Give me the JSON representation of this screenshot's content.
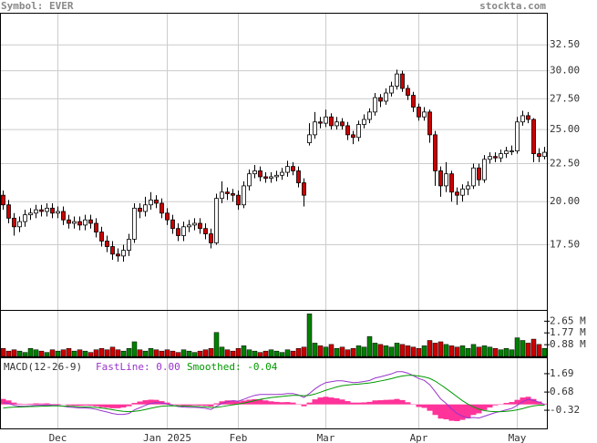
{
  "header": {
    "symbol": "Symbol: EVER",
    "site": "stockta.com"
  },
  "chart_data": [
    {
      "type": "candlestick",
      "categories": [
        null,
        null,
        null,
        null,
        null,
        null,
        null,
        null,
        null,
        null,
        "Dec",
        null,
        null,
        null,
        null,
        null,
        null,
        null,
        null,
        null,
        null,
        null,
        null,
        null,
        null,
        null,
        null,
        null,
        null,
        null,
        "Jan 2025",
        null,
        null,
        null,
        null,
        null,
        null,
        null,
        null,
        null,
        null,
        null,
        null,
        "Feb",
        null,
        null,
        null,
        null,
        null,
        null,
        null,
        null,
        null,
        null,
        null,
        null,
        null,
        null,
        null,
        "Mar",
        null,
        null,
        null,
        null,
        null,
        null,
        null,
        null,
        null,
        null,
        null,
        null,
        null,
        null,
        null,
        null,
        "Apr",
        null,
        null,
        null,
        null,
        null,
        null,
        null,
        null,
        null,
        null,
        null,
        null,
        null,
        null,
        null,
        null,
        null,
        "May",
        null,
        null,
        null,
        null,
        null
      ],
      "open": [
        20.4,
        19.8,
        19.0,
        18.5,
        18.8,
        19.2,
        19.3,
        19.5,
        19.4,
        19.6,
        19.3,
        19.4,
        18.9,
        18.7,
        18.8,
        18.6,
        18.9,
        18.7,
        18.2,
        17.7,
        17.4,
        17.0,
        16.9,
        17.2,
        17.8,
        19.6,
        19.4,
        19.8,
        20.1,
        19.9,
        19.3,
        18.9,
        18.4,
        18.0,
        18.5,
        18.6,
        18.7,
        18.4,
        18.1,
        17.6,
        20.2,
        20.6,
        20.5,
        20.4,
        19.8,
        21.0,
        21.8,
        22.0,
        21.6,
        21.5,
        21.6,
        21.7,
        21.9,
        22.3,
        22.0,
        21.2,
        24.0,
        24.6,
        25.6,
        25.5,
        26.0,
        25.3,
        25.6,
        25.3,
        24.6,
        24.4,
        25.4,
        25.8,
        26.4,
        27.6,
        27.3,
        28.0,
        28.6,
        29.7,
        28.4,
        27.8,
        26.8,
        26.0,
        26.4,
        24.6,
        22.0,
        21.0,
        21.8,
        20.6,
        20.4,
        20.8,
        21.0,
        22.2,
        21.4,
        22.8,
        23.0,
        22.9,
        23.2,
        23.4,
        23.4,
        25.6,
        26.1,
        25.8,
        23.2,
        23.0
      ],
      "high": [
        20.7,
        20.1,
        19.3,
        19.1,
        19.5,
        19.6,
        19.8,
        19.8,
        19.9,
        19.9,
        19.7,
        19.7,
        19.2,
        19.1,
        19.1,
        19.2,
        19.2,
        19.0,
        18.5,
        18.0,
        17.7,
        17.3,
        17.5,
        18.1,
        19.9,
        19.9,
        20.3,
        20.6,
        20.4,
        20.2,
        19.6,
        19.2,
        18.7,
        18.8,
        18.9,
        19.0,
        19.0,
        18.7,
        18.4,
        20.5,
        21.3,
        20.9,
        20.8,
        20.7,
        21.3,
        22.1,
        22.4,
        22.3,
        21.9,
        21.9,
        22.0,
        22.2,
        22.7,
        22.6,
        22.3,
        21.5,
        25.5,
        26.4,
        26.0,
        26.6,
        26.3,
        26.0,
        25.9,
        25.6,
        24.9,
        25.7,
        26.2,
        26.7,
        28.0,
        27.9,
        28.4,
        29.0,
        30.1,
        30.0,
        28.7,
        28.1,
        27.1,
        26.8,
        26.6,
        24.9,
        22.3,
        22.6,
        22.0,
        20.9,
        21.1,
        21.3,
        22.5,
        22.5,
        23.1,
        23.3,
        23.3,
        23.5,
        23.7,
        23.8,
        26.0,
        26.5,
        26.4,
        25.9,
        23.6,
        23.7
      ],
      "low": [
        19.5,
        18.7,
        18.0,
        18.2,
        18.5,
        18.9,
        19.0,
        19.1,
        19.1,
        19.0,
        19.0,
        18.6,
        18.4,
        18.4,
        18.3,
        18.3,
        18.4,
        17.9,
        17.4,
        17.1,
        16.7,
        16.6,
        16.6,
        16.9,
        17.6,
        19.0,
        19.1,
        19.5,
        19.6,
        19.0,
        18.6,
        18.1,
        17.7,
        17.7,
        18.2,
        18.3,
        18.1,
        17.8,
        17.3,
        17.5,
        19.9,
        20.1,
        20.0,
        19.5,
        19.6,
        20.7,
        21.5,
        21.3,
        21.2,
        21.2,
        21.3,
        21.4,
        21.6,
        21.7,
        20.9,
        19.7,
        23.8,
        24.3,
        25.1,
        25.2,
        25.0,
        25.0,
        25.0,
        24.2,
        23.9,
        24.1,
        25.1,
        25.5,
        26.1,
        26.8,
        27.0,
        27.7,
        28.3,
        28.1,
        27.4,
        26.4,
        25.7,
        25.7,
        24.0,
        21.0,
        20.3,
        20.6,
        20.0,
        19.8,
        20.0,
        20.4,
        20.8,
        21.0,
        21.2,
        22.5,
        22.6,
        22.6,
        22.9,
        23.1,
        23.2,
        25.3,
        25.5,
        22.6,
        22.6,
        22.8
      ],
      "close": [
        19.8,
        19.0,
        18.5,
        18.8,
        19.2,
        19.3,
        19.5,
        19.4,
        19.6,
        19.3,
        19.4,
        18.9,
        18.7,
        18.8,
        18.6,
        18.9,
        18.7,
        18.2,
        17.7,
        17.4,
        17.0,
        16.9,
        17.2,
        17.8,
        19.6,
        19.4,
        19.8,
        20.1,
        19.9,
        19.3,
        18.9,
        18.4,
        18.0,
        18.5,
        18.6,
        18.7,
        18.4,
        18.1,
        17.6,
        20.2,
        20.6,
        20.5,
        20.4,
        19.8,
        21.0,
        21.8,
        22.0,
        21.6,
        21.5,
        21.6,
        21.7,
        21.9,
        22.3,
        22.0,
        21.2,
        20.4,
        24.6,
        25.6,
        25.5,
        26.0,
        25.3,
        25.6,
        25.3,
        24.6,
        24.4,
        25.4,
        25.8,
        26.4,
        27.6,
        27.3,
        28.0,
        28.6,
        29.7,
        28.4,
        27.8,
        26.8,
        26.0,
        26.4,
        24.6,
        22.0,
        21.0,
        21.8,
        20.6,
        20.4,
        20.8,
        21.0,
        22.2,
        21.4,
        22.8,
        23.0,
        22.9,
        23.2,
        23.4,
        23.4,
        25.6,
        26.1,
        25.8,
        23.2,
        23.0,
        23.3
      ],
      "up_color": "#ffffff",
      "down_color": "#cc0000",
      "ylim": [
        14.3,
        35.9
      ],
      "log_scale": true,
      "grid": true,
      "yticks": [
        {
          "value": 32.5,
          "label": "32.50"
        },
        {
          "value": 30,
          "label": "30.00"
        },
        {
          "value": 27.5,
          "label": "27.50"
        },
        {
          "value": 25,
          "label": "25.00"
        },
        {
          "value": 22.5,
          "label": "22.50"
        },
        {
          "value": 20,
          "label": "20.00"
        },
        {
          "value": 17.5,
          "label": "17.50"
        }
      ]
    },
    {
      "type": "bar",
      "values": [
        0.6,
        0.4,
        0.5,
        0.4,
        0.3,
        0.6,
        0.5,
        0.4,
        0.3,
        0.5,
        0.4,
        0.5,
        0.6,
        0.4,
        0.5,
        0.4,
        0.3,
        0.5,
        0.6,
        0.5,
        0.7,
        0.5,
        0.4,
        0.6,
        1.1,
        0.5,
        0.4,
        0.6,
        0.5,
        0.4,
        0.5,
        0.4,
        0.3,
        0.5,
        0.4,
        0.3,
        0.4,
        0.5,
        0.6,
        1.8,
        0.7,
        0.5,
        0.4,
        0.6,
        0.8,
        0.5,
        0.4,
        0.3,
        0.4,
        0.5,
        0.4,
        0.3,
        0.5,
        0.4,
        0.6,
        0.7,
        3.2,
        1.0,
        0.8,
        0.7,
        0.9,
        0.6,
        0.7,
        0.5,
        0.6,
        0.8,
        0.7,
        1.5,
        1.0,
        0.9,
        0.8,
        0.7,
        1.0,
        0.9,
        0.8,
        0.7,
        0.6,
        0.8,
        1.2,
        1.0,
        1.1,
        0.9,
        0.8,
        0.7,
        0.8,
        0.6,
        0.9,
        0.7,
        0.8,
        0.7,
        0.6,
        0.5,
        0.6,
        0.5,
        1.4,
        1.2,
        1.0,
        1.3,
        0.9,
        0.6
      ],
      "up_color": "#008000",
      "down_color": "#cc0000",
      "ylim": [
        0,
        3.43
      ],
      "yticks": [
        {
          "value": 2.65,
          "label": "2.65 M"
        },
        {
          "value": 1.77,
          "label": "1.77 M"
        },
        {
          "value": 0.88,
          "label": "0.88 M"
        }
      ]
    },
    {
      "type": "line",
      "title": "MACD(12-26-9)",
      "series": [
        {
          "name": "FastLine: 0.00",
          "color": "#9933cc",
          "values": [
            0.1,
            0.05,
            -0.05,
            -0.1,
            -0.1,
            -0.08,
            -0.05,
            -0.05,
            -0.03,
            -0.05,
            -0.05,
            -0.1,
            -0.15,
            -0.17,
            -0.2,
            -0.2,
            -0.22,
            -0.27,
            -0.35,
            -0.42,
            -0.5,
            -0.55,
            -0.55,
            -0.5,
            -0.3,
            -0.18,
            -0.05,
            0.05,
            0.1,
            0.08,
            0.02,
            -0.05,
            -0.12,
            -0.15,
            -0.16,
            -0.16,
            -0.18,
            -0.22,
            -0.28,
            -0.1,
            0.05,
            0.15,
            0.2,
            0.18,
            0.28,
            0.4,
            0.5,
            0.55,
            0.55,
            0.55,
            0.55,
            0.56,
            0.6,
            0.6,
            0.52,
            0.38,
            0.6,
            0.85,
            1.05,
            1.2,
            1.25,
            1.3,
            1.3,
            1.25,
            1.2,
            1.22,
            1.26,
            1.32,
            1.45,
            1.52,
            1.6,
            1.68,
            1.8,
            1.8,
            1.72,
            1.58,
            1.42,
            1.32,
            1.08,
            0.7,
            0.3,
            0.05,
            -0.25,
            -0.5,
            -0.65,
            -0.75,
            -0.72,
            -0.75,
            -0.65,
            -0.55,
            -0.45,
            -0.38,
            -0.3,
            -0.22,
            -0.05,
            0.15,
            0.28,
            0.22,
            0.12,
            0.0
          ]
        },
        {
          "name": "Smoothed: -0.04",
          "color": "#009900",
          "values": [
            -0.2,
            -0.17,
            -0.15,
            -0.14,
            -0.13,
            -0.12,
            -0.11,
            -0.1,
            -0.09,
            -0.08,
            -0.08,
            -0.09,
            -0.1,
            -0.11,
            -0.13,
            -0.14,
            -0.15,
            -0.17,
            -0.2,
            -0.24,
            -0.29,
            -0.34,
            -0.38,
            -0.4,
            -0.38,
            -0.34,
            -0.28,
            -0.21,
            -0.15,
            -0.1,
            -0.08,
            -0.07,
            -0.08,
            -0.09,
            -0.1,
            -0.11,
            -0.12,
            -0.14,
            -0.17,
            -0.16,
            -0.12,
            -0.07,
            -0.02,
            0.02,
            0.07,
            0.14,
            0.21,
            0.28,
            0.33,
            0.38,
            0.41,
            0.44,
            0.47,
            0.5,
            0.5,
            0.48,
            0.5,
            0.57,
            0.67,
            0.78,
            0.87,
            0.96,
            1.03,
            1.07,
            1.1,
            1.12,
            1.15,
            1.18,
            1.23,
            1.29,
            1.35,
            1.42,
            1.5,
            1.56,
            1.6,
            1.6,
            1.56,
            1.51,
            1.43,
            1.28,
            1.08,
            0.87,
            0.65,
            0.42,
            0.2,
            0.01,
            -0.14,
            -0.26,
            -0.34,
            -0.38,
            -0.4,
            -0.4,
            -0.38,
            -0.35,
            -0.3,
            -0.23,
            -0.14,
            -0.08,
            -0.04,
            -0.04
          ]
        }
      ],
      "histogram": {
        "color": "#ff3399",
        "values": [
          0.3,
          0.22,
          0.1,
          0.04,
          0.03,
          0.04,
          0.06,
          0.05,
          0.06,
          0.03,
          0.03,
          -0.01,
          -0.05,
          -0.06,
          -0.07,
          -0.06,
          -0.07,
          -0.1,
          -0.15,
          -0.18,
          -0.21,
          -0.21,
          -0.17,
          -0.1,
          0.08,
          0.16,
          0.23,
          0.26,
          0.25,
          0.18,
          0.1,
          0.02,
          -0.04,
          -0.06,
          -0.06,
          -0.05,
          -0.06,
          -0.08,
          -0.11,
          0.06,
          0.17,
          0.22,
          0.22,
          0.16,
          0.21,
          0.26,
          0.29,
          0.27,
          0.22,
          0.17,
          0.14,
          0.12,
          0.13,
          0.1,
          0.02,
          -0.1,
          0.1,
          0.28,
          0.38,
          0.42,
          0.38,
          0.34,
          0.27,
          0.18,
          0.1,
          0.1,
          0.11,
          0.14,
          0.22,
          0.23,
          0.25,
          0.26,
          0.3,
          0.24,
          0.12,
          -0.02,
          -0.14,
          -0.19,
          -0.35,
          -0.58,
          -0.78,
          -0.82,
          -0.9,
          -0.92,
          -0.85,
          -0.76,
          -0.58,
          -0.49,
          -0.31,
          -0.17,
          -0.05,
          0.02,
          0.08,
          0.13,
          0.25,
          0.38,
          0.42,
          0.3,
          0.16,
          0.04
        ]
      },
      "ylim": [
        -1.32,
        2.54
      ],
      "yticks": [
        1.69,
        0.68,
        -0.32
      ]
    }
  ]
}
